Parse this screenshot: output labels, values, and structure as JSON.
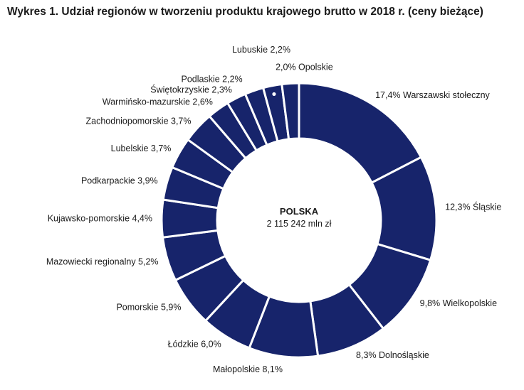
{
  "chart_data": {
    "type": "pie",
    "title": "Wykres 1. Udział regionów w tworzeniu produktu krajowego brutto w 2018 r. (ceny bieżące)",
    "center": {
      "title": "POLSKA",
      "value": "2 115 242 mln zł"
    },
    "colors": {
      "slice": "#17246b",
      "separator": "#ffffff",
      "text": "#1a1a1a"
    },
    "slices": [
      {
        "name": "Warszawski stołeczny",
        "value": 17.4,
        "label": "17,4% Warszawski stołeczny"
      },
      {
        "name": "Śląskie",
        "value": 12.3,
        "label": "12,3% Śląskie"
      },
      {
        "name": "Wielkopolskie",
        "value": 9.8,
        "label": "9,8% Wielkopolskie"
      },
      {
        "name": "Dolnośląskie",
        "value": 8.3,
        "label": "8,3% Dolnośląskie"
      },
      {
        "name": "Małopolskie",
        "value": 8.1,
        "label": "Małopolskie 8,1%"
      },
      {
        "name": "Łódzkie",
        "value": 6.0,
        "label": "Łódzkie 6,0%"
      },
      {
        "name": "Pomorskie",
        "value": 5.9,
        "label": "Pomorskie 5,9%"
      },
      {
        "name": "Mazowiecki regionalny",
        "value": 5.2,
        "label": "Mazowiecki regionalny 5,2%"
      },
      {
        "name": "Kujawsko-pomorskie",
        "value": 4.4,
        "label": "Kujawsko-pomorskie 4,4%"
      },
      {
        "name": "Podkarpackie",
        "value": 3.9,
        "label": "Podkarpackie 3,9%"
      },
      {
        "name": "Lubelskie",
        "value": 3.7,
        "label": "Lubelskie 3,7%"
      },
      {
        "name": "Zachodniopomorskie",
        "value": 3.7,
        "label": "Zachodniopomorskie 3,7%"
      },
      {
        "name": "Warmińsko-mazurskie",
        "value": 2.6,
        "label": "Warmińsko-mazurskie 2,6%"
      },
      {
        "name": "Świętokrzyskie",
        "value": 2.3,
        "label": "Świętokrzyskie 2,3%"
      },
      {
        "name": "Podlaskie",
        "value": 2.2,
        "label": "Podlaskie 2,2%"
      },
      {
        "name": "Lubuskie",
        "value": 2.2,
        "label": "Lubuskie 2,2%"
      },
      {
        "name": "Opolskie",
        "value": 2.0,
        "label": "2,0% Opolskie"
      }
    ]
  }
}
